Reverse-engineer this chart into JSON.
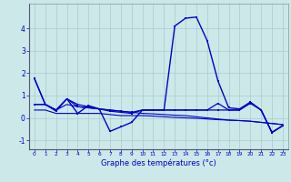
{
  "xlabel": "Graphe des températures (°c)",
  "background_color": "#cce8e8",
  "grid_color": "#aacccc",
  "line_color": "#0000cc",
  "xlim": [
    -0.5,
    23.5
  ],
  "ylim": [
    -1.4,
    5.1
  ],
  "yticks": [
    -1,
    0,
    1,
    2,
    3,
    4
  ],
  "xticks": [
    0,
    1,
    2,
    3,
    4,
    5,
    6,
    7,
    8,
    9,
    10,
    11,
    12,
    13,
    14,
    15,
    16,
    17,
    18,
    19,
    20,
    21,
    22,
    23
  ],
  "series1": [
    [
      0,
      1.75
    ],
    [
      1,
      0.6
    ],
    [
      2,
      0.35
    ],
    [
      3,
      0.85
    ],
    [
      4,
      0.2
    ],
    [
      5,
      0.55
    ],
    [
      6,
      0.4
    ],
    [
      7,
      -0.6
    ],
    [
      8,
      -0.4
    ],
    [
      9,
      -0.2
    ],
    [
      10,
      0.35
    ],
    [
      11,
      0.35
    ],
    [
      12,
      0.35
    ],
    [
      13,
      4.1
    ],
    [
      14,
      4.45
    ],
    [
      15,
      4.5
    ],
    [
      16,
      3.45
    ],
    [
      17,
      1.65
    ],
    [
      18,
      0.45
    ],
    [
      19,
      0.4
    ],
    [
      20,
      0.7
    ],
    [
      21,
      0.35
    ],
    [
      22,
      -0.65
    ],
    [
      23,
      -0.35
    ]
  ],
  "series2": [
    [
      0,
      0.6
    ],
    [
      1,
      0.6
    ],
    [
      2,
      0.35
    ],
    [
      3,
      0.6
    ],
    [
      4,
      0.5
    ],
    [
      5,
      0.45
    ],
    [
      6,
      0.4
    ],
    [
      7,
      0.35
    ],
    [
      8,
      0.3
    ],
    [
      9,
      0.25
    ],
    [
      10,
      0.2
    ],
    [
      11,
      0.18
    ],
    [
      12,
      0.15
    ],
    [
      13,
      0.12
    ],
    [
      14,
      0.1
    ],
    [
      15,
      0.05
    ],
    [
      16,
      0.0
    ],
    [
      17,
      -0.05
    ],
    [
      18,
      -0.1
    ],
    [
      19,
      -0.12
    ],
    [
      20,
      -0.15
    ],
    [
      21,
      -0.2
    ],
    [
      22,
      -0.25
    ],
    [
      23,
      -0.3
    ]
  ],
  "series3": [
    [
      0,
      1.75
    ],
    [
      1,
      0.6
    ],
    [
      2,
      0.35
    ],
    [
      3,
      0.85
    ],
    [
      4,
      0.5
    ],
    [
      5,
      0.45
    ],
    [
      6,
      0.4
    ],
    [
      7,
      0.35
    ],
    [
      8,
      0.3
    ],
    [
      9,
      0.25
    ],
    [
      10,
      0.35
    ],
    [
      11,
      0.35
    ],
    [
      12,
      0.35
    ],
    [
      13,
      0.35
    ],
    [
      14,
      0.35
    ],
    [
      15,
      0.35
    ],
    [
      16,
      0.35
    ],
    [
      17,
      0.35
    ],
    [
      18,
      0.35
    ],
    [
      19,
      0.35
    ],
    [
      20,
      0.65
    ],
    [
      21,
      0.35
    ],
    [
      22,
      -0.65
    ],
    [
      23,
      -0.35
    ]
  ],
  "series4": [
    [
      0,
      0.35
    ],
    [
      1,
      0.35
    ],
    [
      2,
      0.2
    ],
    [
      3,
      0.2
    ],
    [
      4,
      0.2
    ],
    [
      5,
      0.2
    ],
    [
      6,
      0.2
    ],
    [
      7,
      0.15
    ],
    [
      8,
      0.1
    ],
    [
      9,
      0.1
    ],
    [
      10,
      0.1
    ],
    [
      11,
      0.08
    ],
    [
      12,
      0.05
    ],
    [
      13,
      0.02
    ],
    [
      14,
      0.0
    ],
    [
      15,
      -0.02
    ],
    [
      16,
      -0.05
    ],
    [
      17,
      -0.08
    ],
    [
      18,
      -0.1
    ],
    [
      19,
      -0.12
    ],
    [
      20,
      -0.15
    ],
    [
      21,
      -0.2
    ],
    [
      22,
      -0.25
    ],
    [
      23,
      -0.3
    ]
  ],
  "series5": [
    [
      0,
      0.6
    ],
    [
      1,
      0.6
    ],
    [
      2,
      0.3
    ],
    [
      3,
      0.85
    ],
    [
      4,
      0.6
    ],
    [
      5,
      0.5
    ],
    [
      6,
      0.4
    ],
    [
      7,
      0.3
    ],
    [
      8,
      0.25
    ],
    [
      9,
      0.2
    ],
    [
      10,
      0.35
    ],
    [
      11,
      0.35
    ],
    [
      12,
      0.35
    ],
    [
      13,
      0.35
    ],
    [
      14,
      0.35
    ],
    [
      15,
      0.35
    ],
    [
      16,
      0.35
    ],
    [
      17,
      0.65
    ],
    [
      18,
      0.35
    ],
    [
      19,
      0.35
    ],
    [
      20,
      0.7
    ],
    [
      21,
      0.35
    ],
    [
      22,
      -0.65
    ],
    [
      23,
      -0.35
    ]
  ]
}
